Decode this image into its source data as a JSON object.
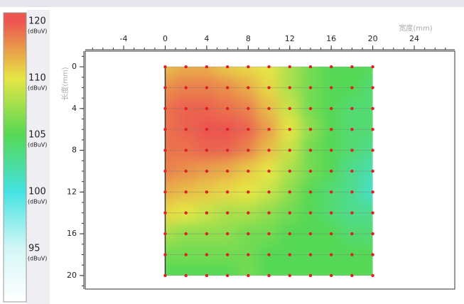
{
  "chart_data": {
    "type": "heatmap",
    "x_label": "宽度(mm)",
    "y_label": "长度(mm)",
    "xlim": [
      -7.7,
      27.9
    ],
    "xticks": [
      -4,
      0,
      4,
      8,
      12,
      16,
      20,
      24
    ],
    "ylim": [
      -1.5,
      21.3
    ],
    "yticks": [
      0,
      4,
      8,
      12,
      16,
      20
    ],
    "x": [
      0,
      2,
      4,
      6,
      8,
      10,
      12,
      14,
      16,
      18,
      20
    ],
    "y": [
      0,
      2,
      4,
      6,
      8,
      10,
      12,
      14,
      16,
      18,
      20
    ],
    "values": [
      [
        113,
        114,
        114,
        112,
        111,
        110,
        108,
        106,
        105,
        105,
        105
      ],
      [
        116,
        117,
        117,
        116,
        114,
        111,
        108,
        106,
        105,
        105,
        104
      ],
      [
        118,
        119,
        119,
        118,
        117,
        113,
        109,
        106,
        105,
        104,
        104
      ],
      [
        118,
        119,
        120,
        120,
        119,
        115,
        110,
        107,
        105,
        104,
        104
      ],
      [
        118,
        118,
        119,
        119,
        117,
        113,
        109,
        106,
        105,
        104,
        103
      ],
      [
        117,
        116,
        115,
        114,
        112,
        110,
        108,
        106,
        105,
        103,
        102
      ],
      [
        114,
        113,
        112,
        111,
        110,
        109,
        107,
        105,
        104,
        103,
        101
      ],
      [
        111,
        110,
        109,
        108,
        108,
        107,
        106,
        105,
        104,
        103,
        103
      ],
      [
        108,
        107,
        107,
        107,
        106,
        106,
        105,
        105,
        105,
        104,
        104
      ],
      [
        106,
        106,
        106,
        106,
        106,
        105,
        105,
        105,
        105,
        105,
        105
      ],
      [
        105,
        105,
        105,
        105,
        106,
        105,
        105,
        105,
        105,
        105,
        105
      ]
    ],
    "colorbar_ticks": [
      120,
      110,
      105,
      100,
      95
    ],
    "colorbar_unit": "(dBuV)",
    "colors": [
      "#ec5550",
      "#e6e645",
      "#55d855",
      "#45e2e2",
      "#d4f6f6"
    ],
    "marker_color": "#e02020"
  }
}
